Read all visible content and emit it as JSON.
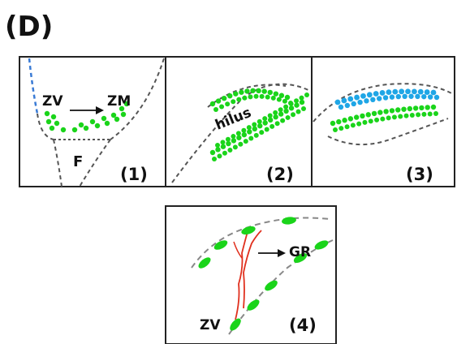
{
  "figure": {
    "panel_letter": "(D)",
    "panels": [
      {
        "number": "(1)",
        "labels": {
          "zv": "ZV",
          "zm": "ZM",
          "f": "F"
        }
      },
      {
        "number": "(2)",
        "labels": {
          "hilus": "hilus"
        }
      },
      {
        "number": "(3)"
      },
      {
        "number": "(4)",
        "labels": {
          "gr": "GR",
          "zv": "ZV"
        }
      }
    ]
  },
  "colors": {
    "green_cells": "#1ad41a",
    "blue_cells": "#1fa6e6",
    "red_fibers": "#e0301e",
    "dashed_outline": "#555555",
    "frame": "#222222"
  }
}
